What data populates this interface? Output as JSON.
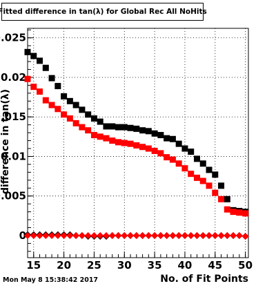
{
  "footer_timestamp": "Mon May  8 15:38:42 2017",
  "chart_data": {
    "type": "scatter",
    "title": "Fitted difference in tan(λ) for Global Rec All NoHits",
    "xlabel": "No. of Fit Points",
    "ylabel": "difference in tan(λ)",
    "xlim": [
      14,
      50.5
    ],
    "ylim": [
      -0.0028,
      0.0262
    ],
    "grid": true,
    "x_ticks": [
      15,
      20,
      25,
      30,
      35,
      40,
      45,
      50
    ],
    "y_ticks": [
      0,
      0.005,
      0.01,
      0.015,
      0.02,
      0.025
    ],
    "y_tick_labels": [
      "0",
      "0.005",
      "0.01",
      "0.015",
      "0.02",
      "0.025"
    ],
    "x_tick_labels": [
      "15",
      "20",
      "25",
      "30",
      "35",
      "40",
      "45",
      "50"
    ],
    "x": [
      14,
      15,
      16,
      17,
      18,
      19,
      20,
      21,
      22,
      23,
      24,
      25,
      26,
      27,
      28,
      29,
      30,
      31,
      32,
      33,
      34,
      35,
      36,
      37,
      38,
      39,
      40,
      41,
      42,
      43,
      44,
      45,
      46,
      47,
      48,
      49,
      50
    ],
    "series": [
      {
        "color": "#000000",
        "marker": "square",
        "values": [
          0.0232,
          0.0227,
          0.0221,
          0.0212,
          0.0199,
          0.0189,
          0.0176,
          0.017,
          0.0165,
          0.0159,
          0.0153,
          0.0148,
          0.0144,
          0.0138,
          0.0138,
          0.0137,
          0.0137,
          0.0136,
          0.0135,
          0.0133,
          0.0132,
          0.0129,
          0.0127,
          0.0123,
          0.0122,
          0.0116,
          0.011,
          0.0106,
          0.0097,
          0.0091,
          0.0083,
          0.0077,
          0.0063,
          0.0046,
          0.0032,
          0.0031,
          0.003
        ]
      },
      {
        "color": "#ff0000",
        "marker": "square",
        "values": [
          0.0198,
          0.0188,
          0.0182,
          0.0171,
          0.0165,
          0.016,
          0.0153,
          0.0148,
          0.0142,
          0.0137,
          0.0133,
          0.0127,
          0.0125,
          0.0123,
          0.012,
          0.0118,
          0.0117,
          0.0116,
          0.0114,
          0.0112,
          0.011,
          0.0107,
          0.0104,
          0.0099,
          0.0096,
          0.0091,
          0.0085,
          0.0078,
          0.0073,
          0.0069,
          0.0063,
          0.0054,
          0.0046,
          0.0033,
          0.003,
          0.0029,
          0.0028
        ]
      },
      {
        "color": "#000000",
        "marker": "diamond",
        "values": [
          0.0001,
          0.0001,
          0.0001,
          0.0001,
          0.0001,
          0.0001,
          0.0001,
          0.0001,
          0.0,
          0.0,
          -0.0001,
          -0.0001,
          -0.0001,
          -0.0001,
          0.0,
          0.0,
          0.0,
          0.0,
          0.0,
          0.0,
          0.0,
          0.0,
          0.0,
          0.0,
          0.0,
          0.0,
          0.0,
          0.0,
          0.0,
          0.0,
          0.0,
          0.0,
          0.0,
          0.0,
          0.0,
          0.0,
          -0.0001
        ]
      },
      {
        "color": "#ff0000",
        "marker": "diamond",
        "values": [
          0.0,
          0.0,
          0.0,
          0.0,
          0.0,
          0.0,
          0.0,
          0.0,
          0.0,
          0.0,
          0.0,
          0.0,
          0.0,
          0.0,
          0.0,
          0.0,
          0.0,
          0.0,
          0.0,
          0.0,
          0.0,
          0.0,
          0.0,
          0.0,
          0.0,
          0.0,
          0.0,
          0.0,
          0.0,
          0.0,
          0.0,
          0.0,
          0.0,
          0.0,
          0.0,
          0.0,
          -0.0001
        ]
      }
    ]
  }
}
